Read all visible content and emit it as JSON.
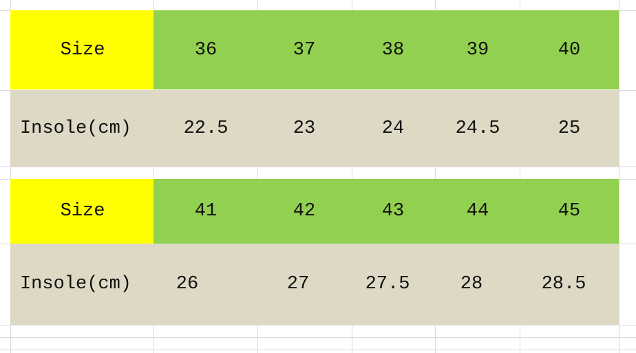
{
  "colors": {
    "label_header": "#ffff00",
    "size_row": "#92d050",
    "insole_row": "#ddd9c4",
    "gridline": "#d9d9df"
  },
  "tables": [
    {
      "size_label": "Size",
      "sizes": [
        "36",
        "37",
        "38",
        "39",
        "40"
      ],
      "insole_label": "Insole(cm)",
      "insoles": [
        "22.5",
        "23",
        "24",
        "24.5",
        "25"
      ]
    },
    {
      "size_label": "Size",
      "sizes": [
        "41",
        "42",
        "43",
        "44",
        "45"
      ],
      "insole_label": "Insole(cm)",
      "insoles": [
        "26",
        "27",
        "27.5",
        "28",
        "28.5"
      ]
    }
  ]
}
